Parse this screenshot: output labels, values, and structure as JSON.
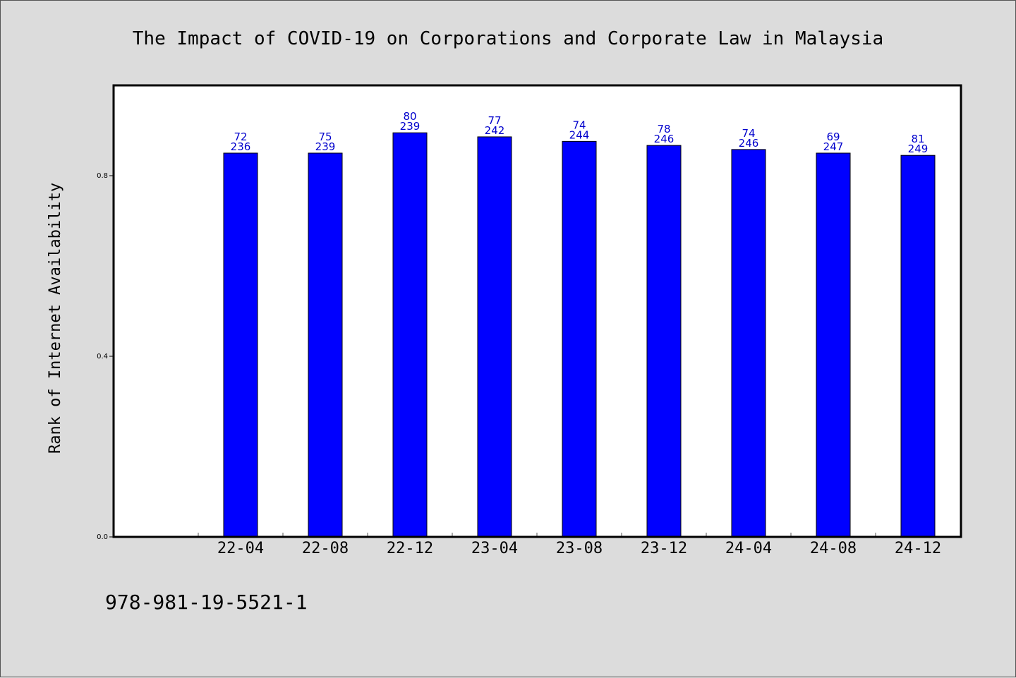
{
  "chart_data": {
    "type": "bar",
    "title": "The Impact of COVID-19 on Corporations and Corporate Law in Malaysia",
    "xlabel": "",
    "ylabel": "Rank of Internet Availability",
    "categories": [
      "22-04",
      "22-08",
      "22-12",
      "23-04",
      "23-08",
      "23-12",
      "24-04",
      "24-08",
      "24-12"
    ],
    "values": [
      0.85,
      0.85,
      0.895,
      0.886,
      0.876,
      0.867,
      0.858,
      0.85,
      0.845
    ],
    "bar_labels": [
      [
        "72",
        "236"
      ],
      [
        "75",
        "239"
      ],
      [
        "80",
        "239"
      ],
      [
        "77",
        "242"
      ],
      [
        "74",
        "244"
      ],
      [
        "78",
        "246"
      ],
      [
        "74",
        "246"
      ],
      [
        "69",
        "247"
      ],
      [
        "81",
        "249"
      ]
    ],
    "yticks": [
      0.0,
      0.4,
      0.8
    ],
    "ytick_labels": [
      "0.0",
      "0.4",
      "0.8"
    ],
    "ylim": [
      0,
      1.0
    ],
    "grid": false,
    "legend": "none",
    "colors": {
      "bar": "#0000ff",
      "bar_edge": "#000000",
      "label": "#0000cc",
      "background": "#dcdcdc",
      "plot_background": "#ffffff"
    }
  },
  "footer": {
    "text": "978-981-19-5521-1"
  }
}
